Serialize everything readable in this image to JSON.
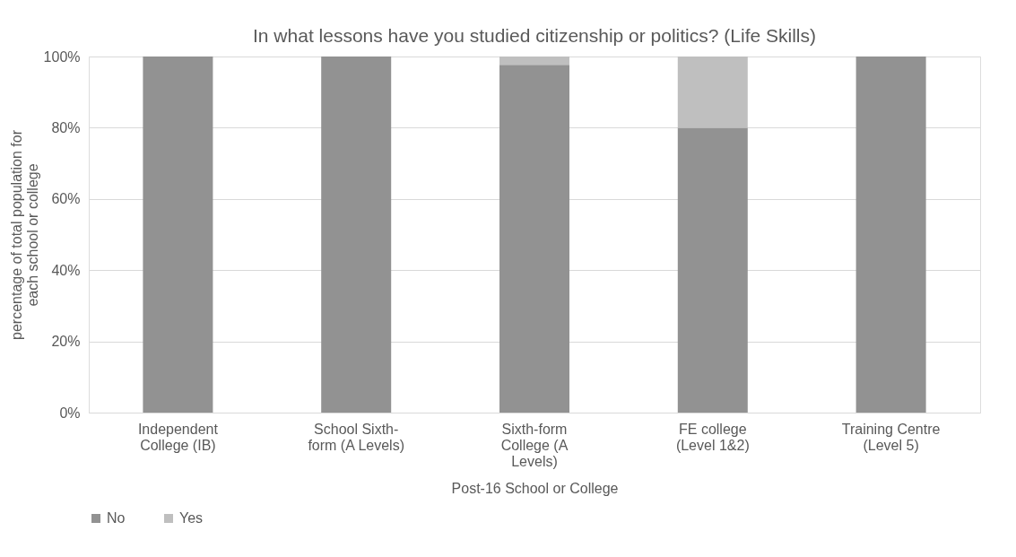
{
  "chart_data": {
    "type": "bar",
    "stacked": true,
    "title": "In what lessons have you studied citizenship or politics?  (Life Skills)",
    "xlabel": "Post-16 School or College",
    "ylabel": "percentage of total population for each school or college",
    "categories": [
      "Independent College (IB)",
      "School Sixth-form (A Levels)",
      "Sixth-form College (A Levels)",
      "FE college (Level 1&2)",
      "Training Centre (Level 5)"
    ],
    "series": [
      {
        "name": "No",
        "color": "#929292",
        "values": [
          100,
          100,
          97.7,
          80,
          100
        ]
      },
      {
        "name": "Yes",
        "color": "#bfbfbf",
        "values": [
          0,
          0,
          2.3,
          20,
          0
        ]
      }
    ],
    "ylim": [
      0,
      100
    ],
    "yticks": [
      {
        "value": 0,
        "label": "0%"
      },
      {
        "value": 20,
        "label": "20%"
      },
      {
        "value": 40,
        "label": "40%"
      },
      {
        "value": 60,
        "label": "60%"
      },
      {
        "value": 80,
        "label": "80%"
      },
      {
        "value": 100,
        "label": "100%"
      }
    ],
    "grid": "y",
    "legend": "bottom"
  }
}
